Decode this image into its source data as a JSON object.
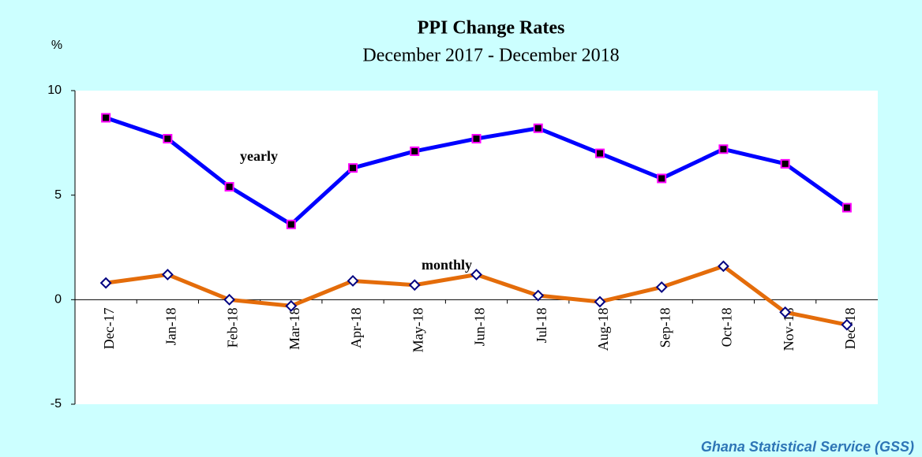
{
  "chart_data": {
    "type": "line",
    "title": "PPI Change Rates",
    "subtitle": "December 2017 - December 2018",
    "y_label": "%",
    "source": "Ghana Statistical Service (GSS)",
    "categories": [
      "Dec-17",
      "Jan-18",
      "Feb-18",
      "Mar-18",
      "Apr-18",
      "May-18",
      "Jun-18",
      "Jul-18",
      "Aug-18",
      "Sep-18",
      "Oct-18",
      "Nov-18",
      "Dec-18"
    ],
    "series": [
      {
        "name": "yearly",
        "color": "#0000ff",
        "values": [
          8.7,
          7.7,
          5.4,
          3.6,
          6.3,
          7.1,
          7.7,
          8.2,
          7.0,
          5.8,
          7.2,
          6.5,
          4.4
        ]
      },
      {
        "name": "monthly",
        "color": "#e46c0a",
        "values": [
          0.8,
          1.2,
          0.0,
          -0.3,
          0.9,
          0.7,
          1.2,
          0.2,
          -0.1,
          0.6,
          1.6,
          -0.6,
          -1.2
        ]
      }
    ],
    "ylim": [
      -5,
      10
    ],
    "yticks": [
      -5,
      0,
      5,
      10
    ],
    "grid": false
  }
}
